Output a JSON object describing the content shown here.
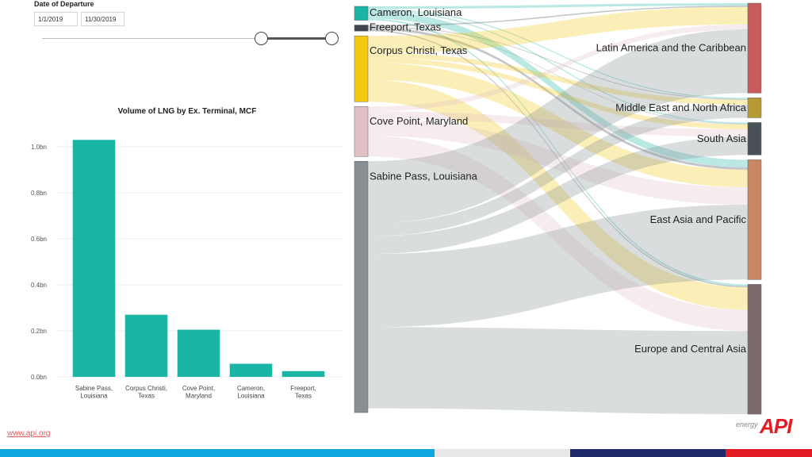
{
  "filter": {
    "title": "Date of Departure",
    "start_date": "1/1/2019",
    "end_date": "11/30/2019"
  },
  "chart_data": [
    {
      "type": "bar",
      "title": "Volume of LNG by Ex. Terminal, MCF",
      "categories": [
        "Sabine Pass, Louisiana",
        "Corpus Christi, Texas",
        "Cove Point, Maryland",
        "Cameron, Louisiana",
        "Freeport, Texas"
      ],
      "category_lines": [
        [
          "Sabine Pass,",
          "Louisiana"
        ],
        [
          "Corpus Christi,",
          "Texas"
        ],
        [
          "Cove Point,",
          "Maryland"
        ],
        [
          "Cameron,",
          "Louisiana"
        ],
        [
          "Freeport,",
          "Texas"
        ]
      ],
      "values": [
        1.03,
        0.27,
        0.205,
        0.057,
        0.025
      ],
      "value_unit": "bn",
      "ylim": [
        0,
        1.0
      ],
      "yticks": [
        "0.0bn",
        "0.2bn",
        "0.4bn",
        "0.6bn",
        "0.8bn",
        "1.0bn"
      ],
      "ytick_values": [
        0,
        0.2,
        0.4,
        0.6,
        0.8,
        1.0
      ],
      "color": "#1ab5a5",
      "grid": true
    },
    {
      "type": "sankey",
      "sources": [
        {
          "name": "Cameron, Louisiana",
          "value": 0.057,
          "color": "#1ab5a5"
        },
        {
          "name": "Freeport, Texas",
          "value": 0.025,
          "color": "#3d474d"
        },
        {
          "name": "Corpus Christi, Texas",
          "value": 0.27,
          "color": "#f2c811"
        },
        {
          "name": "Cove Point, Maryland",
          "value": 0.205,
          "color": "#e0c1c6"
        },
        {
          "name": "Sabine Pass, Louisiana",
          "value": 1.03,
          "color": "#868f92"
        }
      ],
      "targets": [
        {
          "name": "Latin America and the Caribbean",
          "value": 0.36,
          "color": "#c95a5e"
        },
        {
          "name": "Middle East and North Africa",
          "value": 0.08,
          "color": "#b69a34"
        },
        {
          "name": "South Asia",
          "value": 0.13,
          "color": "#485256"
        },
        {
          "name": "East Asia and Pacific",
          "value": 0.48,
          "color": "#c98763"
        },
        {
          "name": "Europe and Central Asia",
          "value": 0.52,
          "color": "#7c6b6c"
        }
      ],
      "links": [
        {
          "source": 0,
          "target": 0,
          "value": 0.01
        },
        {
          "source": 0,
          "target": 1,
          "value": 0.005
        },
        {
          "source": 0,
          "target": 2,
          "value": 0.005
        },
        {
          "source": 0,
          "target": 3,
          "value": 0.03
        },
        {
          "source": 0,
          "target": 4,
          "value": 0.007
        },
        {
          "source": 1,
          "target": 0,
          "value": 0.005
        },
        {
          "source": 1,
          "target": 1,
          "value": 0.003
        },
        {
          "source": 1,
          "target": 2,
          "value": 0.002
        },
        {
          "source": 1,
          "target": 3,
          "value": 0.01
        },
        {
          "source": 1,
          "target": 4,
          "value": 0.005
        },
        {
          "source": 2,
          "target": 0,
          "value": 0.07
        },
        {
          "source": 2,
          "target": 1,
          "value": 0.02
        },
        {
          "source": 2,
          "target": 2,
          "value": 0.02
        },
        {
          "source": 2,
          "target": 3,
          "value": 0.07
        },
        {
          "source": 2,
          "target": 4,
          "value": 0.09
        },
        {
          "source": 3,
          "target": 0,
          "value": 0.02
        },
        {
          "source": 3,
          "target": 2,
          "value": 0.03
        },
        {
          "source": 3,
          "target": 3,
          "value": 0.07
        },
        {
          "source": 3,
          "target": 4,
          "value": 0.085
        },
        {
          "source": 4,
          "target": 0,
          "value": 0.255
        },
        {
          "source": 4,
          "target": 1,
          "value": 0.052
        },
        {
          "source": 4,
          "target": 2,
          "value": 0.073
        },
        {
          "source": 4,
          "target": 3,
          "value": 0.3
        },
        {
          "source": 4,
          "target": 4,
          "value": 0.333
        }
      ]
    }
  ],
  "footer": {
    "url": "www.api.org",
    "logo_word": "energy",
    "logo_text": "API"
  },
  "colors": {
    "strip": [
      "#0ea7e0",
      "#e8e8e8",
      "#1f2a6b",
      "#e31c24"
    ]
  }
}
